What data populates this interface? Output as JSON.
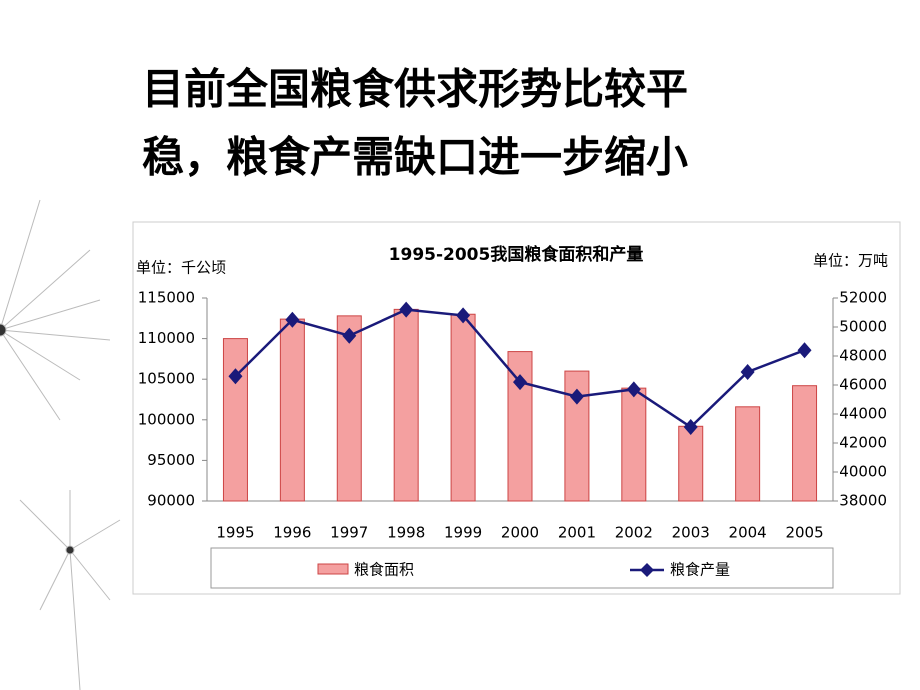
{
  "slide_title": [
    "目前全国粮食供求形势比较平",
    "稳，粮食产需缺口进一步缩小"
  ],
  "chart_data": {
    "type": "bar_line",
    "title": "1995-2005我国粮食面积和产量",
    "y_label": "单位：千公顷",
    "y2_label": "单位：万吨",
    "categories": [
      "1995",
      "1996",
      "1997",
      "1998",
      "1999",
      "2000",
      "2001",
      "2002",
      "2003",
      "2004",
      "2005"
    ],
    "series": [
      {
        "name": "粮食面积",
        "type": "bar",
        "color": "#f4a0a0",
        "values": [
          110000,
          112400,
          112800,
          113600,
          113000,
          108400,
          106000,
          103900,
          99200,
          101600,
          104200
        ]
      },
      {
        "name": "粮食产量",
        "type": "line",
        "axis": "y2",
        "color": "#1a1a7a",
        "values": [
          46600,
          50500,
          49400,
          51200,
          50800,
          46200,
          45200,
          45700,
          43100,
          46900,
          48400
        ]
      }
    ],
    "ylim": [
      90000,
      115000
    ],
    "yticks": [
      90000,
      95000,
      100000,
      105000,
      110000,
      115000
    ],
    "y2lim": [
      38000,
      52000
    ],
    "y2ticks": [
      38000,
      40000,
      42000,
      44000,
      46000,
      48000,
      50000,
      52000
    ],
    "legend": "bottom"
  }
}
